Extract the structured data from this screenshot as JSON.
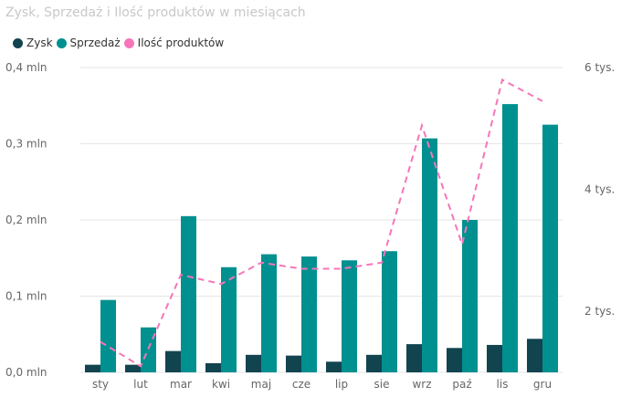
{
  "chart_data": {
    "type": "bar",
    "title": "Zysk, Sprzedaż i Ilość produktów w miesiącach",
    "categories": [
      "sty",
      "lut",
      "mar",
      "kwi",
      "maj",
      "cze",
      "lip",
      "sie",
      "wrz",
      "paź",
      "lis",
      "gru"
    ],
    "series": [
      {
        "name": "Zysk",
        "type": "bar",
        "axis": "left",
        "color": "#12444f",
        "values": [
          0.01,
          0.01,
          0.028,
          0.012,
          0.023,
          0.022,
          0.014,
          0.023,
          0.037,
          0.032,
          0.036,
          0.044
        ]
      },
      {
        "name": "Sprzedaż",
        "type": "bar",
        "axis": "left",
        "color": "#00908f",
        "values": [
          0.095,
          0.059,
          0.205,
          0.138,
          0.155,
          0.152,
          0.147,
          0.159,
          0.307,
          0.2,
          0.352,
          0.325
        ]
      },
      {
        "name": "Ilość produktów",
        "type": "line",
        "axis": "right",
        "color": "#f576b9",
        "style": "dashed",
        "values": [
          1.5,
          1.1,
          2.6,
          2.45,
          2.8,
          2.7,
          2.7,
          2.8,
          5.05,
          3.1,
          5.8,
          5.45
        ]
      }
    ],
    "y_left": {
      "ylim": [
        0,
        0.4
      ],
      "ticks": [
        0,
        0.1,
        0.2,
        0.3,
        0.4
      ],
      "tick_labels": [
        "0,0 mln",
        "0,1 mln",
        "0,2 mln",
        "0,3 mln",
        "0,4 mln"
      ]
    },
    "y_right": {
      "ylim": [
        1,
        6
      ],
      "ticks": [
        2,
        4,
        6
      ],
      "tick_labels": [
        "2 tys.",
        "4 tys.",
        "6 tys."
      ]
    },
    "grid": true,
    "legend_position": "top-left"
  }
}
